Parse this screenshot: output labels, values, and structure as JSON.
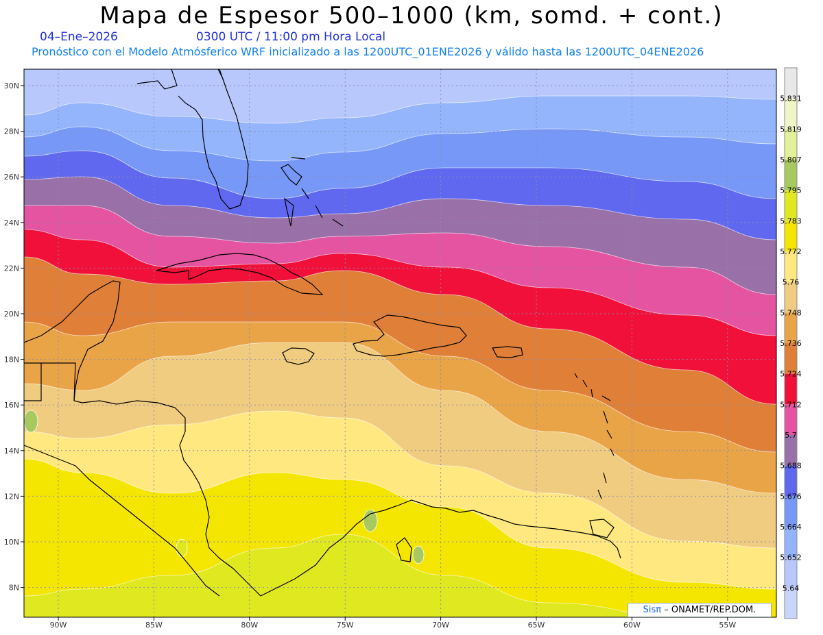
{
  "title": "Mapa de Espesor 500–1000 (km, somd. + cont.)",
  "date": "04–Ene–2026",
  "time": "0300 UTC / 11:00 pm Hora Local",
  "subtitle": "Pronóstico con el Modelo Atmósferico WRF inicializado a las 1200UTC_01ENE2026 y válido hasta las  1200UTC_04ENE2026",
  "credit": {
    "brand": "Sisπ",
    "text": "– ONAMET/REP.DOM."
  },
  "lat_labels": [
    "30N",
    "28N",
    "26N",
    "24N",
    "22N",
    "20N",
    "18N",
    "16N",
    "14N",
    "12N",
    "10N",
    "8N"
  ],
  "lon_labels": [
    "90W",
    "85W",
    "80W",
    "75W",
    "70W",
    "65W",
    "60W",
    "55W"
  ],
  "colorbar": {
    "labels": [
      "5.831",
      "5.819",
      "5.807",
      "5.795",
      "5.783",
      "5.772",
      "5.76",
      "5.748",
      "5.736",
      "5.724",
      "5.712",
      "5.7",
      "5.688",
      "5.676",
      "5.664",
      "5.652",
      "5.64"
    ],
    "colors": [
      "#e8e8e8",
      "#f0f5c8",
      "#e2f09a",
      "#a8c860",
      "#e0e820",
      "#f5e600",
      "#ffe880",
      "#f0cc80",
      "#eaa448",
      "#e08038",
      "#f0103a",
      "#e454a0",
      "#9a70a8",
      "#6068f0",
      "#7898f8",
      "#94b4fc",
      "#b8c8fc",
      "#c8d4fc"
    ]
  },
  "map_fill": {
    "north_to_south": [
      "#b8c8fc",
      "#94b4fc",
      "#7898f8",
      "#6068f0",
      "#9a70a8",
      "#e454a0",
      "#f0103a",
      "#e08038",
      "#eaa448",
      "#f0cc80",
      "#ffe880",
      "#f5e600",
      "#e0e820"
    ]
  }
}
